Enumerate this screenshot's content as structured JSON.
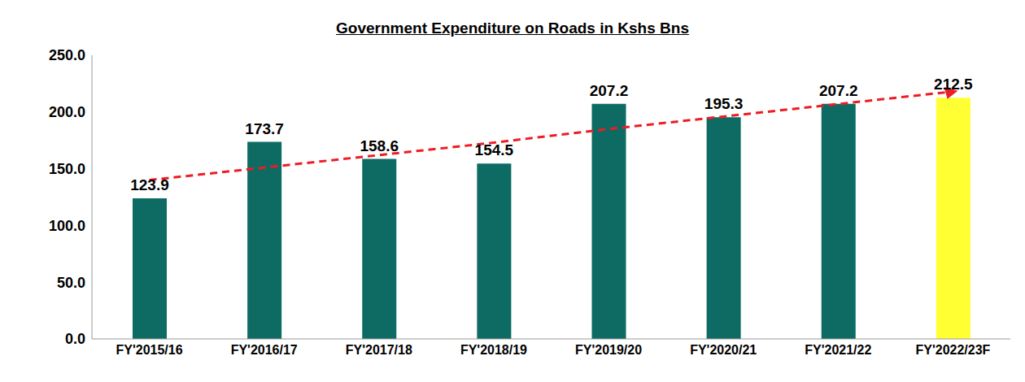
{
  "chart_data": {
    "type": "bar",
    "title": "Government Expenditure on Roads in Kshs Bns",
    "categories": [
      "FY'2015/16",
      "FY'2016/17",
      "FY'2017/18",
      "FY'2018/19",
      "FY'2019/20",
      "FY'2020/21",
      "FY'2021/22",
      "FY'2022/23F"
    ],
    "series": [
      {
        "type": "bar",
        "colors": [
          "#0d6b63",
          "#0d6b63",
          "#0d6b63",
          "#0d6b63",
          "#0d6b63",
          "#0d6b63",
          "#0d6b63",
          "#ffff33"
        ],
        "values": [
          123.9,
          173.7,
          158.6,
          154.5,
          207.2,
          195.3,
          207.2,
          212.5
        ],
        "data_labels": true
      },
      {
        "type": "line",
        "color": "#ee1c25",
        "line_style": "dashed",
        "marker": "arrow",
        "values": [
          140,
          151,
          162,
          173,
          185,
          196,
          207,
          218
        ]
      }
    ],
    "ylim": [
      0,
      250
    ],
    "yticks": [
      {
        "value": 0,
        "label": "0.0"
      },
      {
        "value": 50,
        "label": "50.0"
      },
      {
        "value": 100,
        "label": "100.0"
      },
      {
        "value": 150,
        "label": "150.0"
      },
      {
        "value": 200,
        "label": "200.0"
      },
      {
        "value": 250,
        "label": "250.0"
      }
    ],
    "grid": false
  }
}
